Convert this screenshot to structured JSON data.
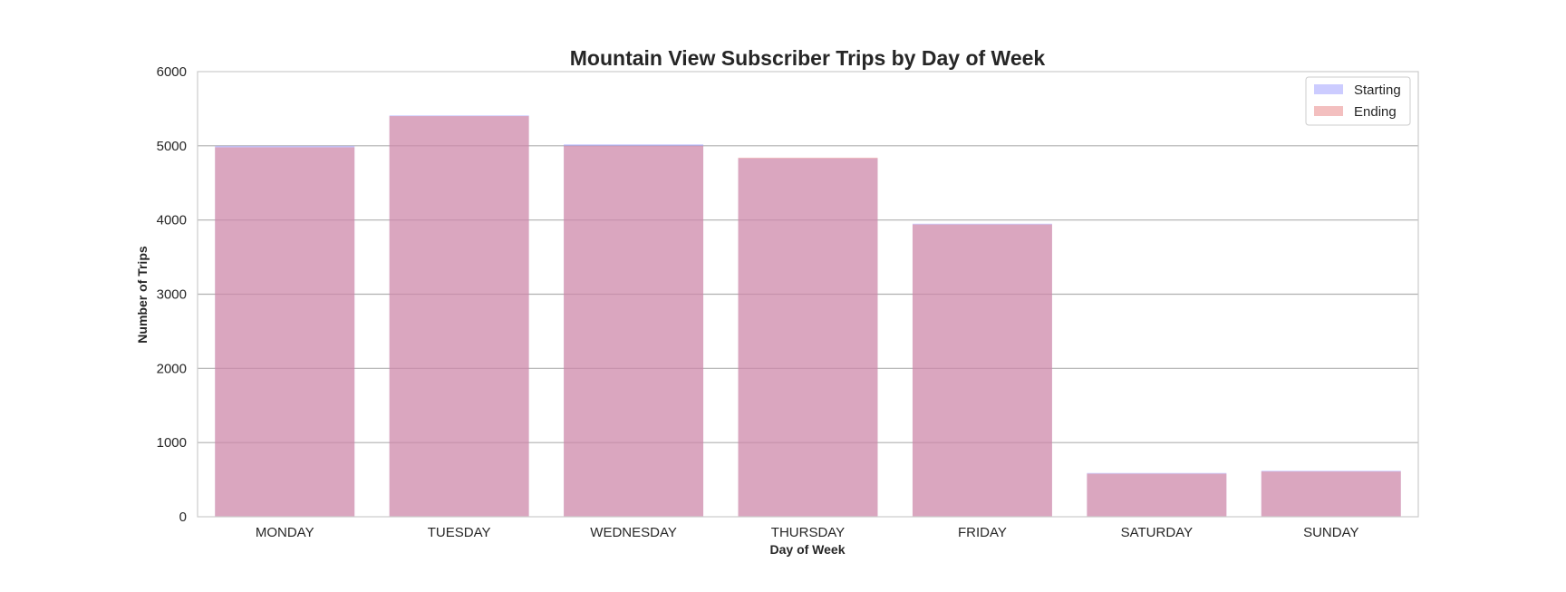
{
  "chart_data": {
    "type": "bar",
    "title": "Mountain View Subscriber Trips by Day of Week",
    "xlabel": "Day of Week",
    "ylabel": "Number of Trips",
    "categories": [
      "MONDAY",
      "TUESDAY",
      "WEDNESDAY",
      "THURSDAY",
      "FRIDAY",
      "SATURDAY",
      "SUNDAY"
    ],
    "ylim": [
      0,
      6000
    ],
    "yticks": [
      0,
      1000,
      2000,
      3000,
      4000,
      5000,
      6000
    ],
    "grid": true,
    "legend_position": "top-right",
    "series": [
      {
        "name": "Starting",
        "color": "#9999ff",
        "values": [
          5000,
          5410,
          5020,
          4830,
          3950,
          590,
          620
        ]
      },
      {
        "name": "Ending",
        "color": "#e88080",
        "values": [
          4980,
          5400,
          5000,
          4840,
          3940,
          580,
          610
        ]
      }
    ]
  }
}
